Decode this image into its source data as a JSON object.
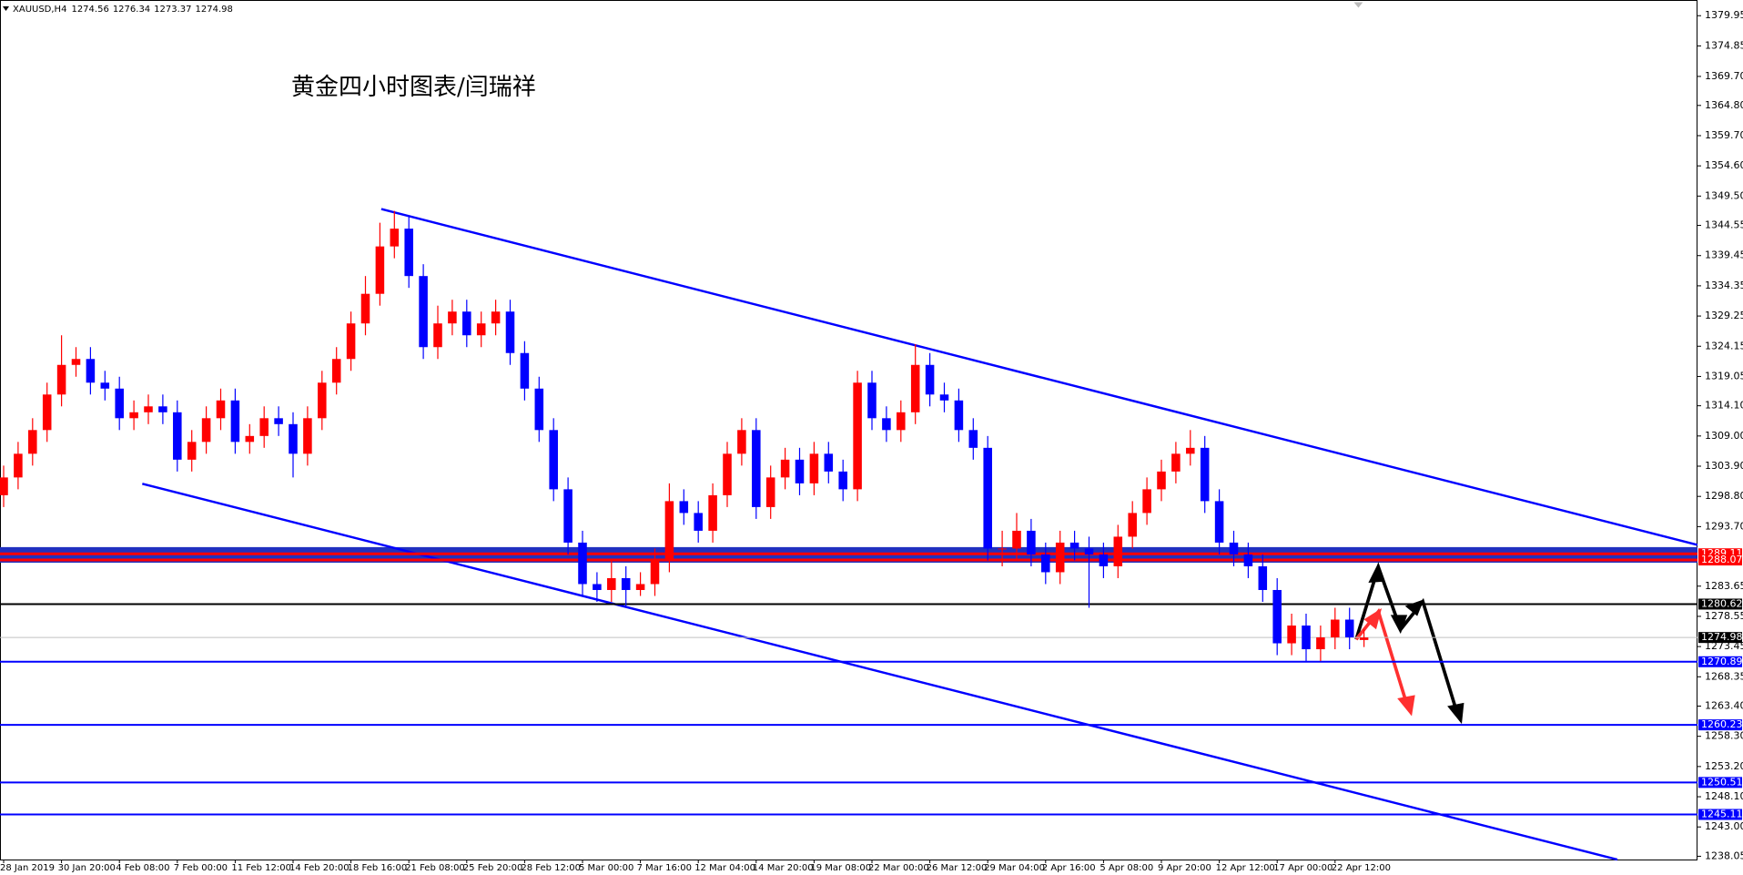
{
  "chart_data": {
    "type": "candlestick",
    "symbol": "XAUUSD,H4",
    "title": "黄金四小时图表/闫瑞祥",
    "categories": [
      "28 Jan 2019",
      null,
      null,
      null,
      "30 Jan 20:00",
      null,
      null,
      null,
      "4 Feb 08:00",
      null,
      null,
      null,
      "7 Feb 00:00",
      null,
      null,
      null,
      "11 Feb 12:00",
      null,
      null,
      null,
      "14 Feb 20:00",
      null,
      null,
      null,
      "18 Feb 16:00",
      null,
      null,
      null,
      "21 Feb 08:00",
      null,
      null,
      null,
      "25 Feb 20:00",
      null,
      null,
      null,
      "28 Feb 12:00",
      null,
      null,
      null,
      "5 Mar 00:00",
      null,
      null,
      null,
      "7 Mar 16:00",
      null,
      null,
      null,
      "12 Mar 04:00",
      null,
      null,
      null,
      "14 Mar 20:00",
      null,
      null,
      null,
      "19 Mar 08:00",
      null,
      null,
      null,
      "22 Mar 00:00",
      null,
      null,
      null,
      "26 Mar 12:00",
      null,
      null,
      null,
      "29 Mar 04:00",
      null,
      null,
      null,
      "2 Apr 16:00",
      null,
      null,
      null,
      "5 Apr 08:00",
      null,
      null,
      null,
      "9 Apr 20:00",
      null,
      null,
      null,
      "12 Apr 12:00",
      null,
      null,
      null,
      "17 Apr 00:00",
      null,
      null,
      null,
      "22 Apr 12:00",
      null,
      null
    ],
    "open": [
      1299,
      1302,
      1306,
      1310,
      1316,
      1321,
      1322,
      1318,
      1317,
      1312,
      1313,
      1314,
      1313,
      1305,
      1308,
      1312,
      1315,
      1308,
      1309,
      1312,
      1311,
      1306,
      1312,
      1318,
      1322,
      1328,
      1333,
      1341,
      1344,
      1336,
      1324,
      1328,
      1330,
      1326,
      1328,
      1330,
      1323,
      1317,
      1310,
      1300,
      1291,
      1284,
      1283,
      1285,
      1283,
      1284,
      1288,
      1298,
      1296,
      1293,
      1299,
      1306,
      1310,
      1297,
      1302,
      1305,
      1301,
      1306,
      1303,
      1300,
      1318,
      1312,
      1310,
      1313,
      1321,
      1316,
      1315,
      1310,
      1307,
      1290,
      1290,
      1293,
      1289,
      1286,
      1291,
      1290,
      1289,
      1287,
      1292,
      1296,
      1300,
      1303,
      1306,
      1307,
      1298,
      1291,
      1289,
      1287,
      1283,
      1274,
      1277,
      1273,
      1275,
      1278,
      1274.56
    ],
    "high": [
      1304,
      1308,
      1312,
      1318,
      1326,
      1324,
      1324,
      1320,
      1319,
      1315,
      1316,
      1316,
      1315,
      1310,
      1314,
      1317,
      1317,
      1311,
      1314,
      1314,
      1313,
      1314,
      1320,
      1324,
      1330,
      1336,
      1345,
      1347,
      1346,
      1338,
      1331,
      1332,
      1332,
      1330,
      1332,
      1332,
      1325,
      1319,
      1312,
      1302,
      1293,
      1286,
      1288,
      1287,
      1286,
      1290,
      1301,
      1300,
      1298,
      1301,
      1308,
      1312,
      1312,
      1304,
      1307,
      1307,
      1308,
      1308,
      1305,
      1320,
      1320,
      1314,
      1315,
      1324.5,
      1323,
      1318,
      1317,
      1312,
      1309,
      1293,
      1296,
      1295,
      1291,
      1293,
      1293,
      1292,
      1291,
      1294,
      1298,
      1302,
      1305,
      1308,
      1310,
      1309,
      1300,
      1293,
      1291,
      1289,
      1285,
      1279,
      1279,
      1277,
      1280,
      1280,
      1276.34
    ],
    "low": [
      1297,
      1300,
      1304,
      1308,
      1314,
      1319,
      1316,
      1315,
      1310,
      1310,
      1311,
      1311,
      1303,
      1303,
      1306,
      1310,
      1306,
      1306,
      1307,
      1309,
      1302,
      1304,
      1310,
      1316,
      1320,
      1326,
      1331,
      1339,
      1334,
      1322,
      1322,
      1326,
      1324,
      1324,
      1326,
      1321,
      1315,
      1308,
      1298,
      1289,
      1282,
      1281,
      1281,
      1280,
      1282,
      1282,
      1286,
      1294,
      1291,
      1291,
      1297,
      1304,
      1295,
      1295,
      1300,
      1299,
      1299,
      1301,
      1298,
      1298,
      1310,
      1308,
      1308,
      1311,
      1314,
      1313,
      1308,
      1305,
      1288,
      1287,
      1288,
      1287,
      1284,
      1284,
      1288,
      1280,
      1285,
      1285,
      1290,
      1294,
      1298,
      1301,
      1304,
      1296,
      1289,
      1287,
      1285,
      1281,
      1272,
      1272,
      1271,
      1271,
      1273,
      1273,
      1273.37
    ],
    "close": [
      1302,
      1306,
      1310,
      1316,
      1321,
      1322,
      1318,
      1317,
      1312,
      1313,
      1314,
      1313,
      1305,
      1308,
      1312,
      1315,
      1308,
      1309,
      1312,
      1311,
      1306,
      1312,
      1318,
      1322,
      1328,
      1333,
      1341,
      1344,
      1336,
      1324,
      1328,
      1330,
      1326,
      1328,
      1330,
      1323,
      1317,
      1310,
      1300,
      1291,
      1284,
      1283,
      1285,
      1283,
      1284,
      1288,
      1298,
      1296,
      1293,
      1299,
      1306,
      1310,
      1297,
      1302,
      1305,
      1301,
      1306,
      1303,
      1300,
      1318,
      1312,
      1310,
      1313,
      1321,
      1316,
      1315,
      1310,
      1307,
      1290,
      1290,
      1293,
      1289,
      1286,
      1291,
      1290,
      1289,
      1287,
      1292,
      1296,
      1300,
      1303,
      1306,
      1307,
      1298,
      1291,
      1289,
      1287,
      1283,
      1274,
      1277,
      1273,
      1275,
      1278,
      1275,
      1274.98
    ],
    "up_color": "#ff0000",
    "down_color": "#0000ff",
    "current_price_color": "#c0c0c0",
    "ylim": [
      1237.5,
      1382.6
    ],
    "yticks": [
      1379.95,
      1374.85,
      {
        "value": 1369.7,
        "label": "1369.70"
      },
      {
        "value": 1364.8,
        "label": "1364.80"
      },
      {
        "value": 1359.7,
        "label": "1359.70"
      },
      {
        "value": 1354.6,
        "label": "1354.60"
      },
      {
        "value": 1349.5,
        "label": "1349.50"
      },
      1344.55,
      1339.45,
      1334.35,
      1329.25,
      1324.15,
      1319.05,
      {
        "value": 1314.1,
        "label": "1314.10"
      },
      {
        "value": 1309,
        "label": "1309.00"
      },
      {
        "value": 1303.9,
        "label": "1303.90"
      },
      {
        "value": 1298.8,
        "label": "1298.80"
      },
      {
        "value": 1293.7,
        "label": "1293.70"
      },
      1283.65,
      1278.55,
      1273.45,
      1268.35,
      {
        "value": 1263.4,
        "label": "1263.40"
      },
      {
        "value": 1258.3,
        "label": "1258.30"
      },
      {
        "value": 1253.2,
        "label": "1253.20"
      },
      {
        "value": 1248.1,
        "label": "1248.10"
      },
      {
        "value": 1243,
        "label": "1243.00"
      },
      1238.05
    ],
    "levels": [
      {
        "value": 1289.11,
        "color": "#ff0000"
      },
      {
        "value": 1288.07,
        "color": "#ff0000"
      },
      {
        "value": 1280.62,
        "color": "#000000"
      },
      {
        "value": 1270.89,
        "color": "#0000ff"
      },
      {
        "value": 1260.23,
        "color": "#0000ff"
      },
      {
        "value": 1250.51,
        "color": "#0000ff"
      },
      {
        "value": 1245.11,
        "color": "#0000ff"
      }
    ]
  }
}
